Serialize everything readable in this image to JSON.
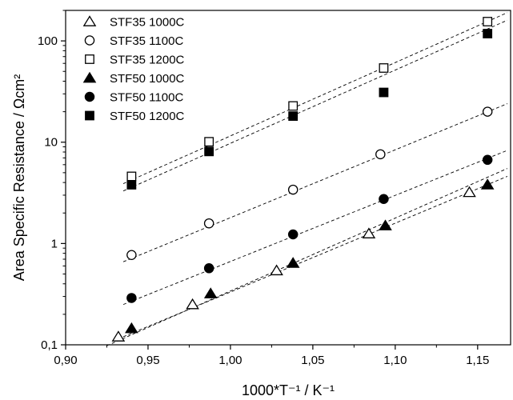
{
  "chart_data": {
    "type": "scatter",
    "title": "",
    "xlabel": "1000*T⁻¹ / K⁻¹",
    "ylabel": "Area Specific Resistance / Ωcm²",
    "xlim": [
      0.9,
      1.17
    ],
    "ylim": [
      0.1,
      200
    ],
    "yscale": "log",
    "x_ticks": [
      0.9,
      0.95,
      1.0,
      1.05,
      1.1,
      1.15
    ],
    "x_tick_labels": [
      "0,90",
      "0,95",
      "1,00",
      "1,05",
      "1,10",
      "1,15"
    ],
    "y_ticks": [
      0.1,
      1,
      10,
      100
    ],
    "y_tick_labels": [
      "0,1",
      "1",
      "10",
      "100"
    ],
    "grid": false,
    "legend_position": "top-left",
    "fit_line_style": "dashed",
    "series": [
      {
        "name": "STF35 1000C",
        "marker": "triangle-open",
        "x": [
          0.932,
          0.977,
          1.028,
          1.084,
          1.145
        ],
        "y": [
          0.12,
          0.25,
          0.54,
          1.25,
          3.2
        ],
        "fit": {
          "x": [
            0.925,
            1.168
          ],
          "y": [
            0.098,
            5.5
          ]
        }
      },
      {
        "name": "STF35 1100C",
        "marker": "circle-open",
        "x": [
          0.94,
          0.987,
          1.038,
          1.091,
          1.156
        ],
        "y": [
          0.77,
          1.58,
          3.4,
          7.6,
          20
        ],
        "fit": {
          "x": [
            0.935,
            1.168
          ],
          "y": [
            0.66,
            24
          ]
        }
      },
      {
        "name": "STF35 1200C",
        "marker": "square-open",
        "x": [
          0.94,
          0.987,
          1.038,
          1.093,
          1.156
        ],
        "y": [
          4.6,
          10.1,
          22.8,
          54,
          155
        ],
        "fit": {
          "x": [
            0.935,
            1.168
          ],
          "y": [
            3.9,
            190
          ]
        }
      },
      {
        "name": "STF50 1000C",
        "marker": "triangle-filled",
        "x": [
          0.94,
          0.988,
          1.038,
          1.094,
          1.156
        ],
        "y": [
          0.145,
          0.32,
          0.64,
          1.5,
          3.8
        ],
        "fit": {
          "x": [
            0.935,
            1.168
          ],
          "y": [
            0.12,
            4.6
          ]
        }
      },
      {
        "name": "STF50 1100C",
        "marker": "circle-filled",
        "x": [
          0.94,
          0.987,
          1.038,
          1.093,
          1.156
        ],
        "y": [
          0.29,
          0.57,
          1.23,
          2.75,
          6.7
        ],
        "fit": {
          "x": [
            0.935,
            1.168
          ],
          "y": [
            0.25,
            8.3
          ]
        }
      },
      {
        "name": "STF50 1200C",
        "marker": "square-filled",
        "x": [
          0.94,
          0.987,
          1.038,
          1.093,
          1.156
        ],
        "y": [
          3.8,
          8.1,
          18.1,
          31,
          118
        ],
        "fit": {
          "x": [
            0.935,
            1.168
          ],
          "y": [
            3.3,
            160
          ]
        }
      }
    ]
  }
}
